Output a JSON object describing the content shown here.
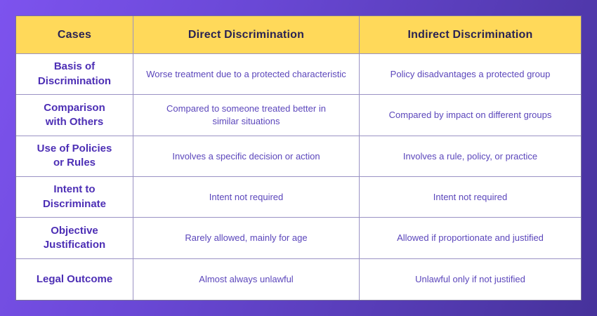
{
  "chart_data": {
    "type": "table",
    "columns": [
      "Cases",
      "Direct Discrimination",
      "Indirect Discrimination"
    ],
    "rows": [
      {
        "case": "Basis of\nDiscrimination",
        "direct": "Worse treatment due to a protected characteristic",
        "indirect": "Policy disadvantages a protected group"
      },
      {
        "case": "Comparison\nwith Others",
        "direct": "Compared to someone treated better in\nsimilar situations",
        "indirect": "Compared by impact on different groups"
      },
      {
        "case": "Use of Policies\nor Rules",
        "direct": "Involves a specific decision or action",
        "indirect": "Involves a rule, policy, or practice"
      },
      {
        "case": "Intent to\nDiscriminate",
        "direct": "Intent not required",
        "indirect": "Intent not required"
      },
      {
        "case": "Objective\nJustification",
        "direct": "Rarely allowed, mainly for age",
        "indirect": "Allowed if proportionate and justified"
      },
      {
        "case": "Legal Outcome",
        "direct": "Almost always unlawful",
        "indirect": "Unlawful only if not justified"
      }
    ]
  },
  "colors": {
    "frame_gradient_start": "#7d53ee",
    "frame_gradient_end": "#46329b",
    "header_background": "#ffd95a",
    "header_text": "#2a2352",
    "case_label_text": "#4d2fb5",
    "body_text": "#5b46bb",
    "grid_line": "#9a92c4",
    "outer_border": "#77709a",
    "cell_background": "#ffffff"
  }
}
